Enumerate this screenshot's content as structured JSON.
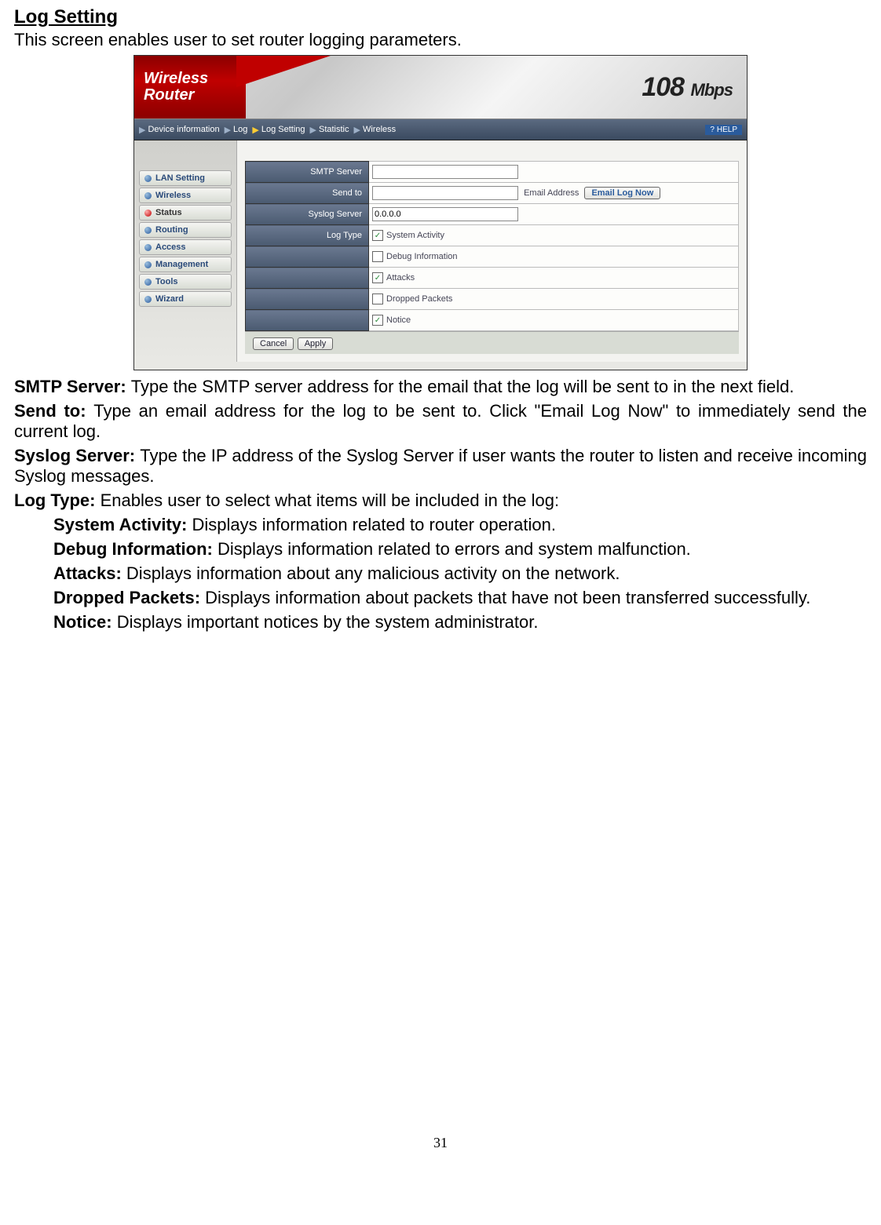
{
  "heading": "Log Setting",
  "intro": "This screen enables user to set router logging parameters.",
  "banner": {
    "line1": "Wireless",
    "line2": "Router",
    "speed": "108",
    "unit": "Mbps"
  },
  "breadcrumb": [
    {
      "label": "Device information",
      "active": false
    },
    {
      "label": "Log",
      "active": false
    },
    {
      "label": "Log Setting",
      "active": true
    },
    {
      "label": "Statistic",
      "active": false
    },
    {
      "label": "Wireless",
      "active": false
    }
  ],
  "help": "HELP",
  "sidebar": [
    {
      "label": "LAN Setting",
      "active": false
    },
    {
      "label": "Wireless",
      "active": false
    },
    {
      "label": "Status",
      "active": true
    },
    {
      "label": "Routing",
      "active": false
    },
    {
      "label": "Access",
      "active": false
    },
    {
      "label": "Management",
      "active": false
    },
    {
      "label": "Tools",
      "active": false
    },
    {
      "label": "Wizard",
      "active": false
    }
  ],
  "form": {
    "smtp_label": "SMTP Server",
    "smtp_value": "",
    "sendto_label": "Send to",
    "sendto_value": "",
    "email_addr_label": "Email Address",
    "email_btn": "Email Log Now",
    "syslog_label": "Syslog Server",
    "syslog_value": "0.0.0.0",
    "logtype_label": "Log Type",
    "options": [
      {
        "label": "System Activity",
        "checked": true
      },
      {
        "label": "Debug Information",
        "checked": false
      },
      {
        "label": "Attacks",
        "checked": true
      },
      {
        "label": "Dropped Packets",
        "checked": false
      },
      {
        "label": "Notice",
        "checked": true
      }
    ],
    "cancel": "Cancel",
    "apply": "Apply"
  },
  "desc": {
    "smtp_b": "SMTP Server: ",
    "smtp_t": "Type the SMTP server address for the email that the log will be sent to in the next field.",
    "sendto_b": "Send to: ",
    "sendto_t": "Type an email address for the log to be sent to. Click \"Email Log Now\" to immediately send the current log.",
    "syslog_b": "Syslog Server: ",
    "syslog_t": "Type the IP address of the Syslog Server if user wants the router to listen and receive incoming Syslog messages.",
    "logtype_b": "Log Type: ",
    "logtype_t": "Enables user to select what items will be included in the log:",
    "sa_b": "System Activity: ",
    "sa_t": "Displays information related to router operation.",
    "di_b": "Debug Information: ",
    "di_t": "Displays information related to errors and system malfunction.",
    "at_b": "Attacks: ",
    "at_t": "Displays information about any malicious activity on the network.",
    "dp_b": "Dropped Packets: ",
    "dp_t": "Displays information about packets that have not been transferred successfully.",
    "nt_b": "Notice: ",
    "nt_t": "Displays important notices by the system administrator."
  },
  "pagenum": "31"
}
